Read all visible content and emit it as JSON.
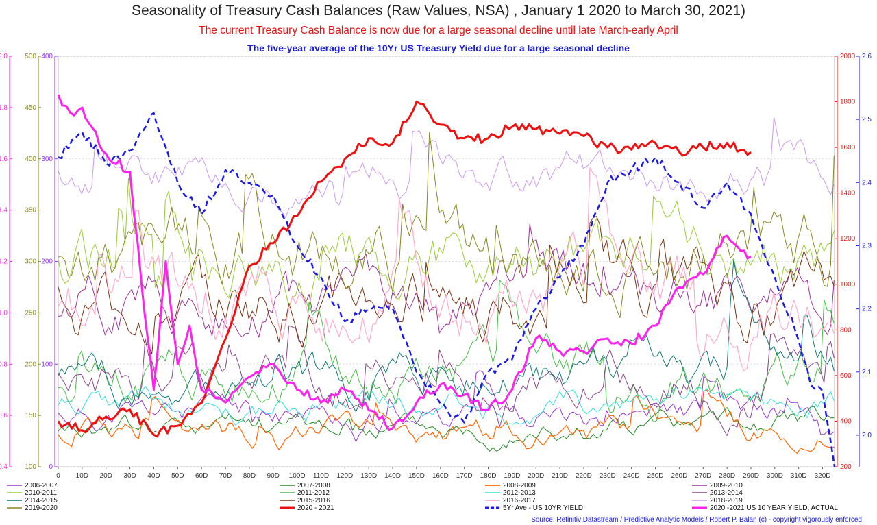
{
  "title": "Seasonality of Treasury Cash Balances (Raw Values, NSA) , January 1 2020 to March 30, 2021)",
  "subtitle_red": "The current Treasury Cash Balance is now due for a large seasonal decline until late March-early April",
  "subtitle_blue": "The five-year average of the 10Yr US Treasury Yield due for a large seasonal decline",
  "source": "Source: Refinitiv Datastream / Predictive Analytic Models / Robert P. Balan (c)  - copyright vigorously enforced",
  "colors": {
    "y2020_2021": "#ee1111",
    "yield_5yr": "#1a1ae6",
    "yield_actual": "#ff22ee",
    "axis_magenta": "#ff22ee",
    "axis_olive": "#8a8a2a",
    "axis_purple": "#9933ff",
    "axis_red": "#ee1111",
    "axis_blue": "#1a1ae6"
  },
  "chart_data": {
    "type": "line",
    "x": {
      "tick_labels": [
        "0",
        "10D",
        "20D",
        "30D",
        "40D",
        "50D",
        "60D",
        "70D",
        "80D",
        "90D",
        "100D",
        "110D",
        "120D",
        "130D",
        "140D",
        "150D",
        "160D",
        "170D",
        "180D",
        "190D",
        "200D",
        "210D",
        "220D",
        "230D",
        "240D",
        "250D",
        "260D",
        "270D",
        "280D",
        "290D",
        "300D",
        "310D",
        "320D"
      ],
      "range": [
        0,
        325
      ]
    },
    "axes": {
      "left_magenta": {
        "range": [
          0.4,
          2.0
        ],
        "ticks": [
          "0.4",
          "0.6",
          "0.8",
          "1.0",
          "1.2",
          "1.4",
          "1.6",
          "1.8",
          "2.0"
        ]
      },
      "left_olive": {
        "range": [
          100,
          500
        ],
        "ticks": [
          "100",
          "150",
          "200",
          "250",
          "300",
          "350",
          "400",
          "450",
          "500"
        ]
      },
      "left_purple": {
        "range": [
          0,
          400
        ],
        "ticks": [
          "0",
          "100",
          "200",
          "300",
          "400"
        ]
      },
      "right_red": {
        "range": [
          200,
          2000
        ],
        "ticks": [
          "200",
          "400",
          "600",
          "800",
          "1000",
          "1200",
          "1400",
          "1600",
          "1800",
          "2000"
        ]
      },
      "right_blue": {
        "range": [
          1.95,
          2.6
        ],
        "ticks": [
          "2.0",
          "2.1",
          "2.2",
          "2.3",
          "2.4",
          "2.5",
          "2.6"
        ]
      }
    },
    "grid": true,
    "legend_position": "bottom",
    "series": [
      {
        "name": "2006-2007",
        "color": "#9933cc",
        "width": 1,
        "dash": "",
        "axis": "left_olive",
        "base": 150,
        "amp": 40
      },
      {
        "name": "2007-2008",
        "color": "#228822",
        "width": 1,
        "dash": "",
        "axis": "left_olive",
        "base": 140,
        "amp": 35
      },
      {
        "name": "2008-2009",
        "color": "#ff6600",
        "width": 1.2,
        "dash": "",
        "axis": "left_olive",
        "base": 130,
        "amp": 35
      },
      {
        "name": "2009-2010",
        "color": "#993399",
        "width": 1,
        "dash": "",
        "axis": "left_olive",
        "base": 260,
        "amp": 80
      },
      {
        "name": "2010-2011",
        "color": "#99cc33",
        "width": 1,
        "dash": "",
        "axis": "left_olive",
        "base": 300,
        "amp": 90
      },
      {
        "name": "2011-2012",
        "color": "#44bb44",
        "width": 1,
        "dash": "",
        "axis": "left_olive",
        "base": 190,
        "amp": 70
      },
      {
        "name": "2012-2013",
        "color": "#33dddd",
        "width": 1,
        "dash": "",
        "axis": "left_olive",
        "base": 160,
        "amp": 40
      },
      {
        "name": "2013-2014",
        "color": "#884488",
        "width": 1,
        "dash": "",
        "axis": "left_olive",
        "base": 180,
        "amp": 60
      },
      {
        "name": "2014-2015",
        "color": "#117777",
        "width": 1,
        "dash": "",
        "axis": "left_olive",
        "base": 190,
        "amp": 60
      },
      {
        "name": "2015-2016",
        "color": "#773311",
        "width": 1,
        "dash": "",
        "axis": "left_olive",
        "base": 260,
        "amp": 90
      },
      {
        "name": "2016-2017",
        "color": "#ffaacc",
        "width": 1.2,
        "dash": "",
        "axis": "left_olive",
        "base": 260,
        "amp": 100
      },
      {
        "name": "2018-2019",
        "color": "#cc99ee",
        "width": 1,
        "dash": "",
        "axis": "left_olive",
        "base": 380,
        "amp": 60
      },
      {
        "name": "2019-2020",
        "color": "#888822",
        "width": 1,
        "dash": "",
        "axis": "left_olive",
        "base": 310,
        "amp": 100
      },
      {
        "name": "2020 - 2021",
        "color": "#ee1111",
        "width": 3,
        "dash": "",
        "axis": "right_red",
        "x": [
          0,
          10,
          20,
          30,
          40,
          50,
          60,
          70,
          80,
          90,
          100,
          110,
          120,
          130,
          140,
          150,
          160,
          170,
          180,
          190,
          200,
          210,
          220,
          230,
          240,
          250,
          260,
          270,
          280,
          290
        ],
        "y": [
          400,
          360,
          420,
          450,
          340,
          380,
          480,
          760,
          1080,
          1180,
          1300,
          1450,
          1550,
          1640,
          1620,
          1800,
          1700,
          1640,
          1640,
          1690,
          1680,
          1660,
          1650,
          1600,
          1590,
          1620,
          1580,
          1600,
          1620,
          1580
        ]
      },
      {
        "name": "5Yr Ave - US 10YR YIELD",
        "color": "#1a1ae6",
        "width": 2.5,
        "dash": "8,5",
        "axis": "right_blue",
        "x": [
          0,
          10,
          20,
          30,
          40,
          50,
          60,
          70,
          80,
          90,
          100,
          110,
          120,
          130,
          140,
          150,
          160,
          170,
          180,
          190,
          200,
          210,
          220,
          230,
          240,
          250,
          260,
          270,
          280,
          290,
          300,
          310,
          315,
          320,
          325
        ],
        "y": [
          2.44,
          2.48,
          2.43,
          2.45,
          2.51,
          2.4,
          2.35,
          2.42,
          2.4,
          2.38,
          2.3,
          2.25,
          2.18,
          2.2,
          2.2,
          2.1,
          2.05,
          2.02,
          2.1,
          2.12,
          2.2,
          2.25,
          2.3,
          2.4,
          2.42,
          2.44,
          2.4,
          2.36,
          2.4,
          2.35,
          2.25,
          2.15,
          2.08,
          2.07,
          1.95
        ]
      },
      {
        "name": "2020 -2021 US 10 YEAR YIELD, ACTUAL",
        "color": "#ff22ee",
        "width": 3,
        "dash": "",
        "axis": "left_magenta",
        "x": [
          0,
          5,
          10,
          20,
          30,
          35,
          40,
          45,
          50,
          55,
          60,
          70,
          80,
          90,
          100,
          110,
          120,
          130,
          140,
          150,
          160,
          170,
          180,
          190,
          200,
          210,
          220,
          230,
          240,
          250,
          260,
          270,
          280,
          290
        ],
        "y": [
          1.85,
          1.78,
          1.8,
          1.62,
          1.55,
          1.1,
          0.7,
          1.2,
          0.8,
          0.95,
          0.7,
          0.65,
          0.75,
          0.8,
          0.7,
          0.65,
          0.7,
          0.62,
          0.55,
          0.65,
          0.72,
          0.68,
          0.62,
          0.7,
          0.9,
          0.85,
          0.85,
          0.9,
          0.88,
          0.95,
          1.1,
          1.15,
          1.3,
          1.22
        ]
      }
    ]
  }
}
